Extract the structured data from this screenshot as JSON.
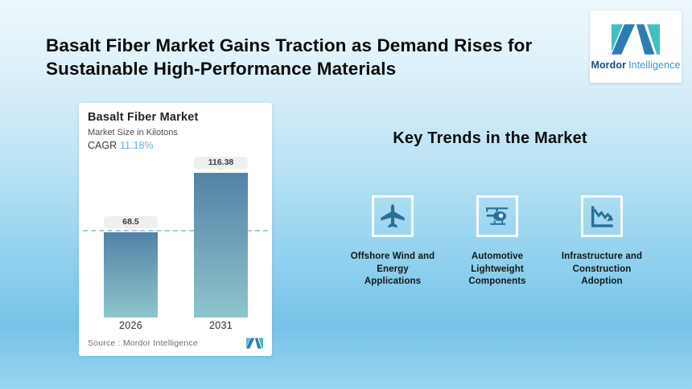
{
  "header": {
    "lines": [
      "Basalt Fiber Market Gains Traction as Demand Rises for",
      "Sustainable High-Performance Materials"
    ]
  },
  "logo": {
    "brand_bold": "Mordor",
    "brand_light": "Intelligence"
  },
  "chart_card": {
    "title": "Basalt Fiber Market",
    "subtitle": "Market Size in Kilotons",
    "cagr_label": "CAGR",
    "cagr_value": "11.18%",
    "source": "Source :  Mordor Intelligence"
  },
  "chart_data": {
    "type": "bar",
    "title": "Basalt Fiber Market",
    "subtitle": "Market Size in Kilotons",
    "unit": "Kilotons",
    "cagr_percent": 11.18,
    "categories": [
      "2026",
      "2031"
    ],
    "values": [
      68.5,
      116.38
    ],
    "bar_labels": [
      "68.5",
      "116.38"
    ],
    "ylim": [
      0,
      140
    ],
    "reference_line_at": 68.5,
    "grid": "single dashed reference line at first bar value",
    "legend": "none"
  },
  "key_trends": {
    "heading": "Key Trends in the Market",
    "items": [
      {
        "icon": "airplane-icon",
        "lines": [
          "Offshore Wind and",
          "Energy",
          "Applications"
        ]
      },
      {
        "icon": "helicopter-icon",
        "lines": [
          "Automotive",
          "Lightweight",
          "Components"
        ]
      },
      {
        "icon": "declining-chart-icon",
        "lines": [
          "Infrastructure and",
          "Construction",
          "Adoption"
        ]
      }
    ]
  },
  "colors": {
    "brand-blue": "#2f7cb5",
    "brand-teal": "#41c0c1",
    "brand-text-dark": "#1c4f79",
    "brand-text-light": "#4092c8",
    "bar-top": "#5282a6",
    "bar-bottom": "#8ec5cc",
    "cagr-blue": "#6db1d8",
    "dash": "#a9c9db",
    "pill-bg": "#edf1ec",
    "trend-icon": "#2a6f94"
  }
}
